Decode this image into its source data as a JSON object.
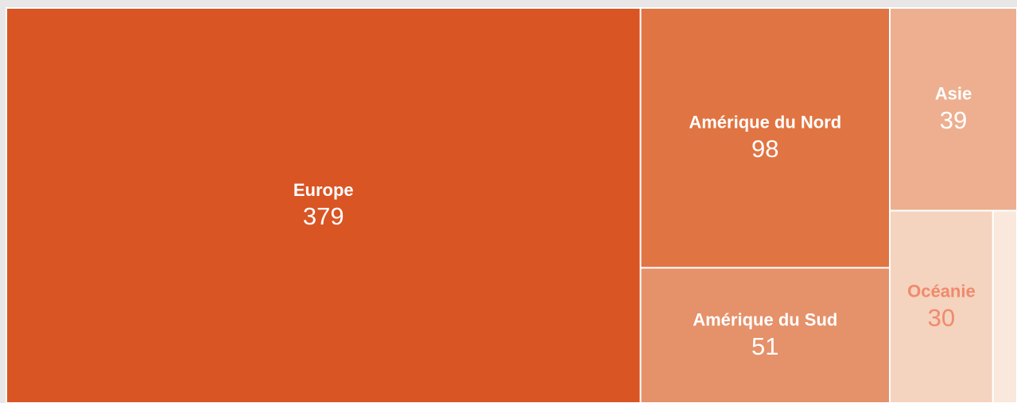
{
  "chart_data": {
    "type": "treemap",
    "categories": [
      "Europe",
      "Amérique du Nord",
      "Amérique du Sud",
      "Asie",
      "Océanie",
      null
    ],
    "values": [
      379,
      98,
      51,
      39,
      30,
      7
    ],
    "colors": [
      "#d95524",
      "#e07442",
      "#e5916a",
      "#edaf8f",
      "#f4d3bf",
      "#fae8dc"
    ]
  }
}
